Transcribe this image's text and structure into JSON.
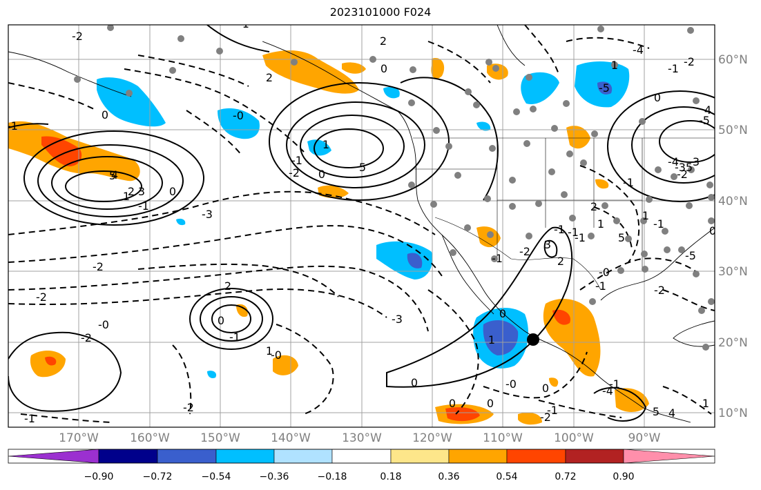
{
  "title": "2023101000 F024",
  "lat_labels": [
    "60°N",
    "50°N",
    "40°N",
    "30°N",
    "20°N",
    "10°N"
  ],
  "lon_labels": [
    "170°W",
    "160°W",
    "150°W",
    "140°W",
    "130°W",
    "120°W",
    "110°W",
    "100°W",
    "90°W"
  ],
  "colorbar": {
    "ticks": [
      "−0.90",
      "−0.72",
      "−0.54",
      "−0.36",
      "−0.18",
      "0.18",
      "0.36",
      "0.54",
      "0.72",
      "0.90"
    ],
    "colors": [
      "#9b30d0",
      "#00008b",
      "#3a5fcd",
      "#00bfff",
      "#b0e2ff",
      "#ffffff",
      "#fde68a",
      "#ffa500",
      "#ff4500",
      "#b22222",
      "#ff8fab"
    ]
  },
  "map_extent": {
    "lon_min": -180,
    "lon_max": -80,
    "lat_min": 8,
    "lat_max": 65
  },
  "contour_labels": [
    "-2",
    "0",
    "2",
    "-1",
    "0",
    "-1",
    "1",
    "2",
    "3",
    "4",
    "5",
    "-0",
    "0",
    "-1",
    "1",
    "-2",
    "-3",
    "-2",
    "5",
    "2",
    "-1",
    "-4",
    "0",
    "-5",
    "4",
    "-5",
    "1",
    "0",
    "-1",
    "-2",
    "-1",
    "-4",
    "-3",
    "-2",
    "3",
    "5",
    "-1",
    "1",
    "-2",
    "-3",
    "-0",
    "-2",
    "1",
    "-1",
    "0",
    "2",
    "-0",
    "-2",
    "-1",
    "-2",
    "0",
    "-0",
    "-4",
    "5",
    "4",
    "-5",
    "0",
    "1",
    "2",
    "-1",
    "-1",
    "3",
    "-1",
    "1",
    "-1",
    "0",
    "-1",
    "-2",
    "0",
    "-0",
    "-1",
    "2",
    "5",
    "1",
    "0",
    "-2",
    "0",
    "-1"
  ],
  "marker": {
    "name": "storm-center-marker",
    "lon": -105.8,
    "lat": 20.2
  },
  "colors": {
    "grid": "#a0a0a0",
    "coast": "#000000",
    "station": "#808080"
  }
}
